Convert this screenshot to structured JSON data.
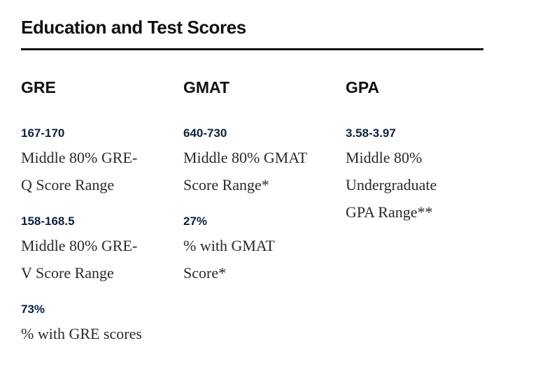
{
  "section": {
    "title": "Education and Test Scores"
  },
  "columns": [
    {
      "heading": "GRE",
      "stats": [
        {
          "value": "167-170",
          "desc_lines": [
            "Middle 80% GRE-",
            "Q Score Range"
          ]
        },
        {
          "value": "158-168.5",
          "desc_lines": [
            "Middle 80% GRE-",
            "V Score Range"
          ]
        },
        {
          "value": "73%",
          "desc_lines": [
            "% with GRE scores"
          ]
        }
      ]
    },
    {
      "heading": "GMAT",
      "stats": [
        {
          "value": "640-730",
          "desc_lines": [
            "Middle 80% GMAT",
            "Score Range*"
          ]
        },
        {
          "value": "27%",
          "desc_lines": [
            "% with GMAT",
            "Score*"
          ]
        }
      ]
    },
    {
      "heading": "GPA",
      "stats": [
        {
          "value": "3.58-3.97",
          "desc_lines": [
            "Middle 80%",
            "Undergraduate",
            "GPA Range**"
          ]
        }
      ]
    }
  ]
}
